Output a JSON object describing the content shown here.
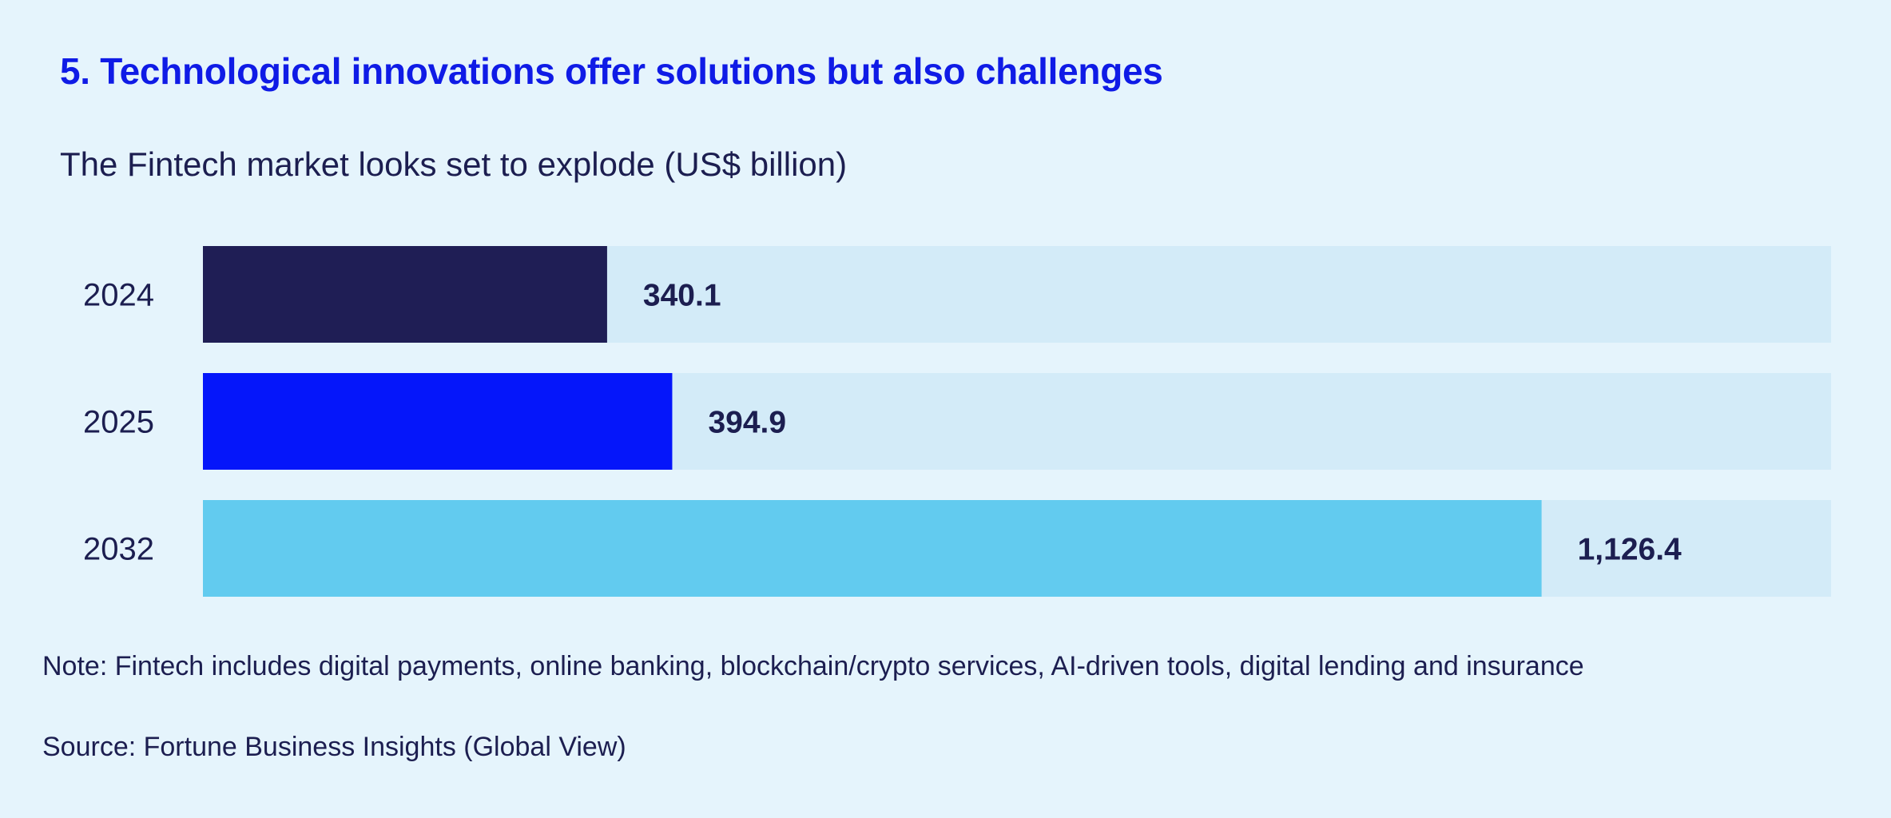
{
  "title": "5. Technological innovations offer solutions but also challenges",
  "chart_data": {
    "type": "bar",
    "orientation": "horizontal",
    "title": "The Fintech market looks set to explode (US$ billion)",
    "categories": [
      "2024",
      "2025",
      "2032"
    ],
    "values": [
      340.1,
      394.9,
      1126.4
    ],
    "value_labels": [
      "340.1",
      "394.9",
      "1,126.4"
    ],
    "xlim": [
      0,
      1370
    ],
    "xlabel": "",
    "ylabel": "",
    "grid": false,
    "legend": "none",
    "colors": [
      "#1f1e55",
      "#0516fa",
      "#62cbef"
    ],
    "track_color": "#d3ebf8"
  },
  "note": "Note: Fintech includes digital payments, online banking, blockchain/crypto services, AI-driven tools, digital lending and insurance",
  "source": "Source: Fortune Business Insights (Global View)",
  "colors": {
    "background": "#e5f4fc",
    "title": "#0f1be6",
    "text": "#1c1e50"
  }
}
